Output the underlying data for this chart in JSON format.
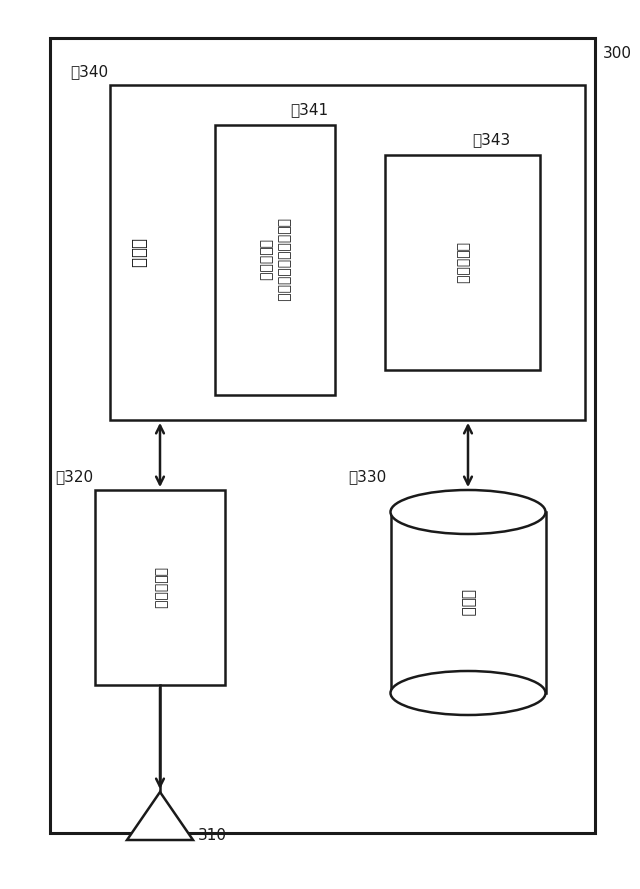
{
  "fig_width": 6.4,
  "fig_height": 8.89,
  "bg_color": "#ffffff",
  "line_color": "#1a1a1a",
  "label_300": "300",
  "label_310": "310",
  "label_320": "～320",
  "label_330": "～330",
  "label_340": "～340",
  "label_341": "～341",
  "label_343": "～343",
  "text_処理部": "処理部",
  "text_オペレーション1": "オペレーションモード",
  "text_オペレーション2": "決定処理部",
  "text_通信処理部": "通信処理部",
  "text_無線通信部": "無線通信部",
  "text_記憶部": "記憶部",
  "font_size_label": 11,
  "font_size_box": 12,
  "font_size_inner": 11
}
